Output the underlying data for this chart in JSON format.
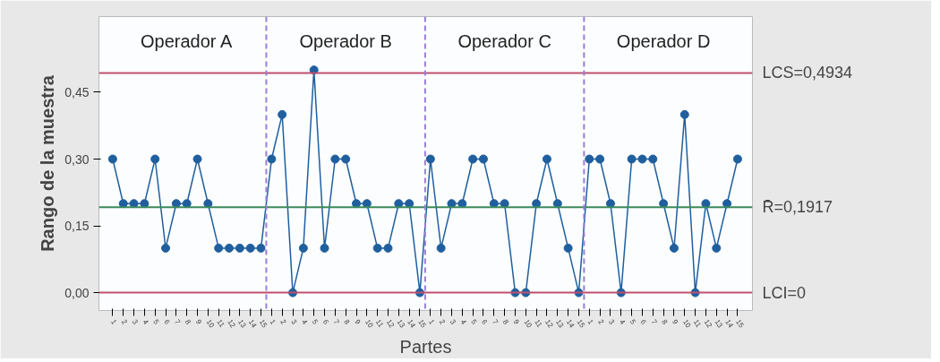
{
  "chart_data": {
    "type": "line",
    "xlabel": "Partes",
    "ylabel": "Rango de la muestra",
    "categories": [
      "1",
      "2",
      "3",
      "4",
      "5",
      "6",
      "7",
      "8",
      "9",
      "10",
      "11",
      "12",
      "13",
      "14",
      "15",
      "1",
      "2",
      "3",
      "4",
      "5",
      "6",
      "7",
      "8",
      "9",
      "10",
      "11",
      "12",
      "13",
      "14",
      "15",
      "1",
      "2",
      "3",
      "4",
      "5",
      "6",
      "7",
      "8",
      "9",
      "10",
      "11",
      "12",
      "13",
      "14",
      "15",
      "1",
      "2",
      "3",
      "4",
      "5",
      "6",
      "7",
      "8",
      "9",
      "10",
      "11",
      "12",
      "13",
      "14",
      "15"
    ],
    "series": [
      {
        "color": "#1f5f9e",
        "values": [
          0.3,
          0.2,
          0.2,
          0.2,
          0.3,
          0.1,
          0.2,
          0.2,
          0.3,
          0.2,
          0.1,
          0.1,
          0.1,
          0.1,
          0.1,
          0.3,
          0.4,
          0.0,
          0.1,
          0.5,
          0.1,
          0.3,
          0.3,
          0.2,
          0.2,
          0.1,
          0.1,
          0.2,
          0.2,
          0.0,
          0.3,
          0.1,
          0.2,
          0.2,
          0.3,
          0.3,
          0.2,
          0.2,
          0.0,
          0.0,
          0.2,
          0.3,
          0.2,
          0.1,
          0.0,
          0.3,
          0.3,
          0.2,
          0.0,
          0.3,
          0.3,
          0.3,
          0.2,
          0.1,
          0.4,
          0.0,
          0.2,
          0.1,
          0.2,
          0.3
        ]
      }
    ],
    "marker": "circle",
    "line_style": "solid",
    "grid": false,
    "ylim": [
      -0.04,
      0.62
    ],
    "yticks": [
      {
        "value": 0,
        "label": "0,00"
      },
      {
        "value": 0.15,
        "label": "0,15"
      },
      {
        "value": 0.3,
        "label": "0,30"
      },
      {
        "value": 0.45,
        "label": "0,45"
      }
    ],
    "ref_lines": [
      {
        "axis": "y",
        "value": 0.4934,
        "label": "LCS=0,4934",
        "color": "#c0506e"
      },
      {
        "axis": "y",
        "value": 0.1917,
        "label": "R̄=0,1917",
        "color": "#3a8a5a"
      },
      {
        "axis": "y",
        "value": 0,
        "label": "LCI=0",
        "color": "#c0506e"
      }
    ],
    "annotations": [
      "Operador A",
      "Operador B",
      "Operador C",
      "Operador D"
    ]
  }
}
